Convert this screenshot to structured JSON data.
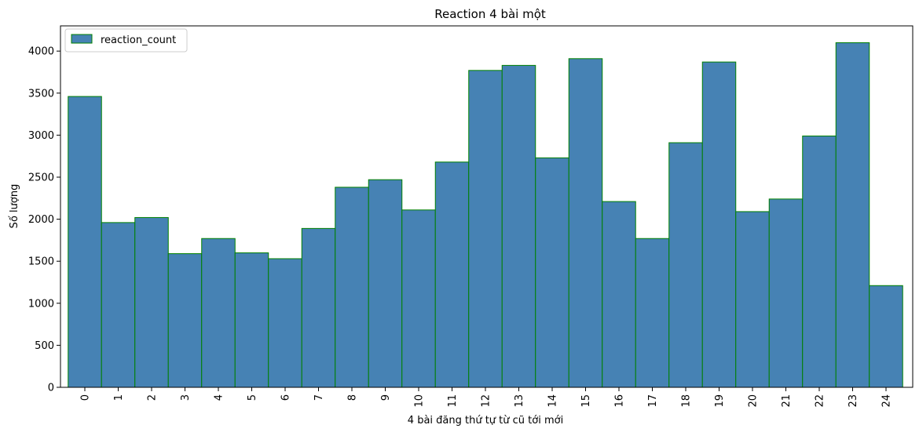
{
  "chart_data": {
    "type": "bar",
    "title": "Reaction 4 bài một",
    "xlabel": "4 bài đăng thứ tự từ cũ tới mới",
    "ylabel": "Số lượng",
    "categories": [
      "0",
      "1",
      "2",
      "3",
      "4",
      "5",
      "6",
      "7",
      "8",
      "9",
      "10",
      "11",
      "12",
      "13",
      "14",
      "15",
      "16",
      "17",
      "18",
      "19",
      "20",
      "21",
      "22",
      "23",
      "24"
    ],
    "series": [
      {
        "name": "reaction_count",
        "values": [
          3460,
          1960,
          2020,
          1590,
          1770,
          1600,
          1530,
          1890,
          2380,
          2470,
          2110,
          2680,
          3770,
          3830,
          2730,
          3910,
          2210,
          1770,
          2910,
          3870,
          2090,
          2240,
          2990,
          4100,
          1210
        ]
      }
    ],
    "ylim": [
      0,
      4300
    ],
    "yticks": [
      0,
      500,
      1000,
      1500,
      2000,
      2500,
      3000,
      3500,
      4000
    ],
    "grid": false,
    "legend": "top-left",
    "bar_color": "#4682b4",
    "edge_color": "#008000"
  }
}
